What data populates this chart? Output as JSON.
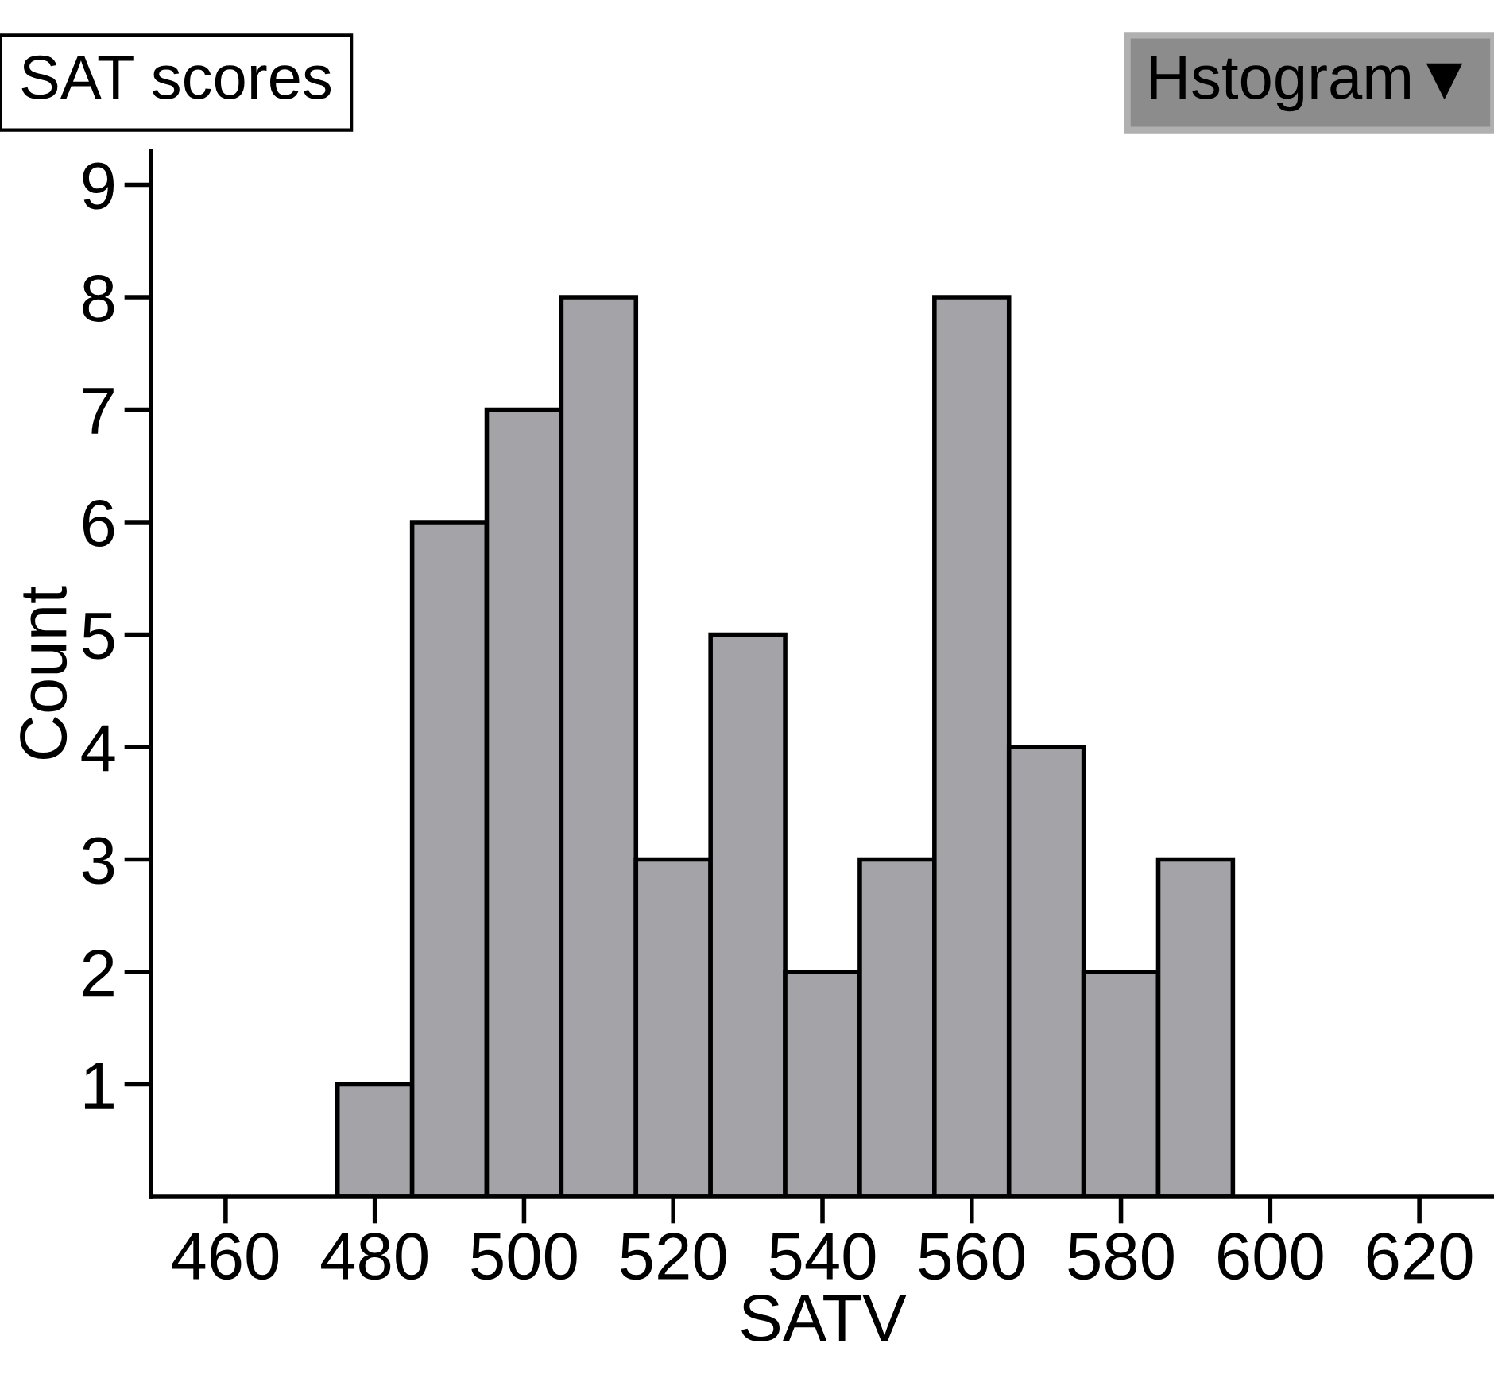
{
  "chart_data": {
    "type": "histogram",
    "title": "SAT scores",
    "xlabel": "SATV",
    "ylabel": "Count",
    "bins": [
      475,
      485,
      495,
      505,
      515,
      525,
      535,
      545,
      555,
      565,
      575,
      585,
      595
    ],
    "values": [
      1,
      6,
      7,
      8,
      3,
      5,
      2,
      3,
      8,
      4,
      2,
      3
    ],
    "color": "#a3a3a8",
    "xlim": [
      450,
      630
    ],
    "xticks": [
      460,
      480,
      500,
      520,
      540,
      560,
      580,
      600,
      620
    ],
    "ylim": [
      0,
      9.3
    ],
    "yticks": [
      1,
      2,
      3,
      4,
      5,
      6,
      7,
      8,
      9
    ],
    "annotations": [
      "Hstogram▼"
    ]
  }
}
